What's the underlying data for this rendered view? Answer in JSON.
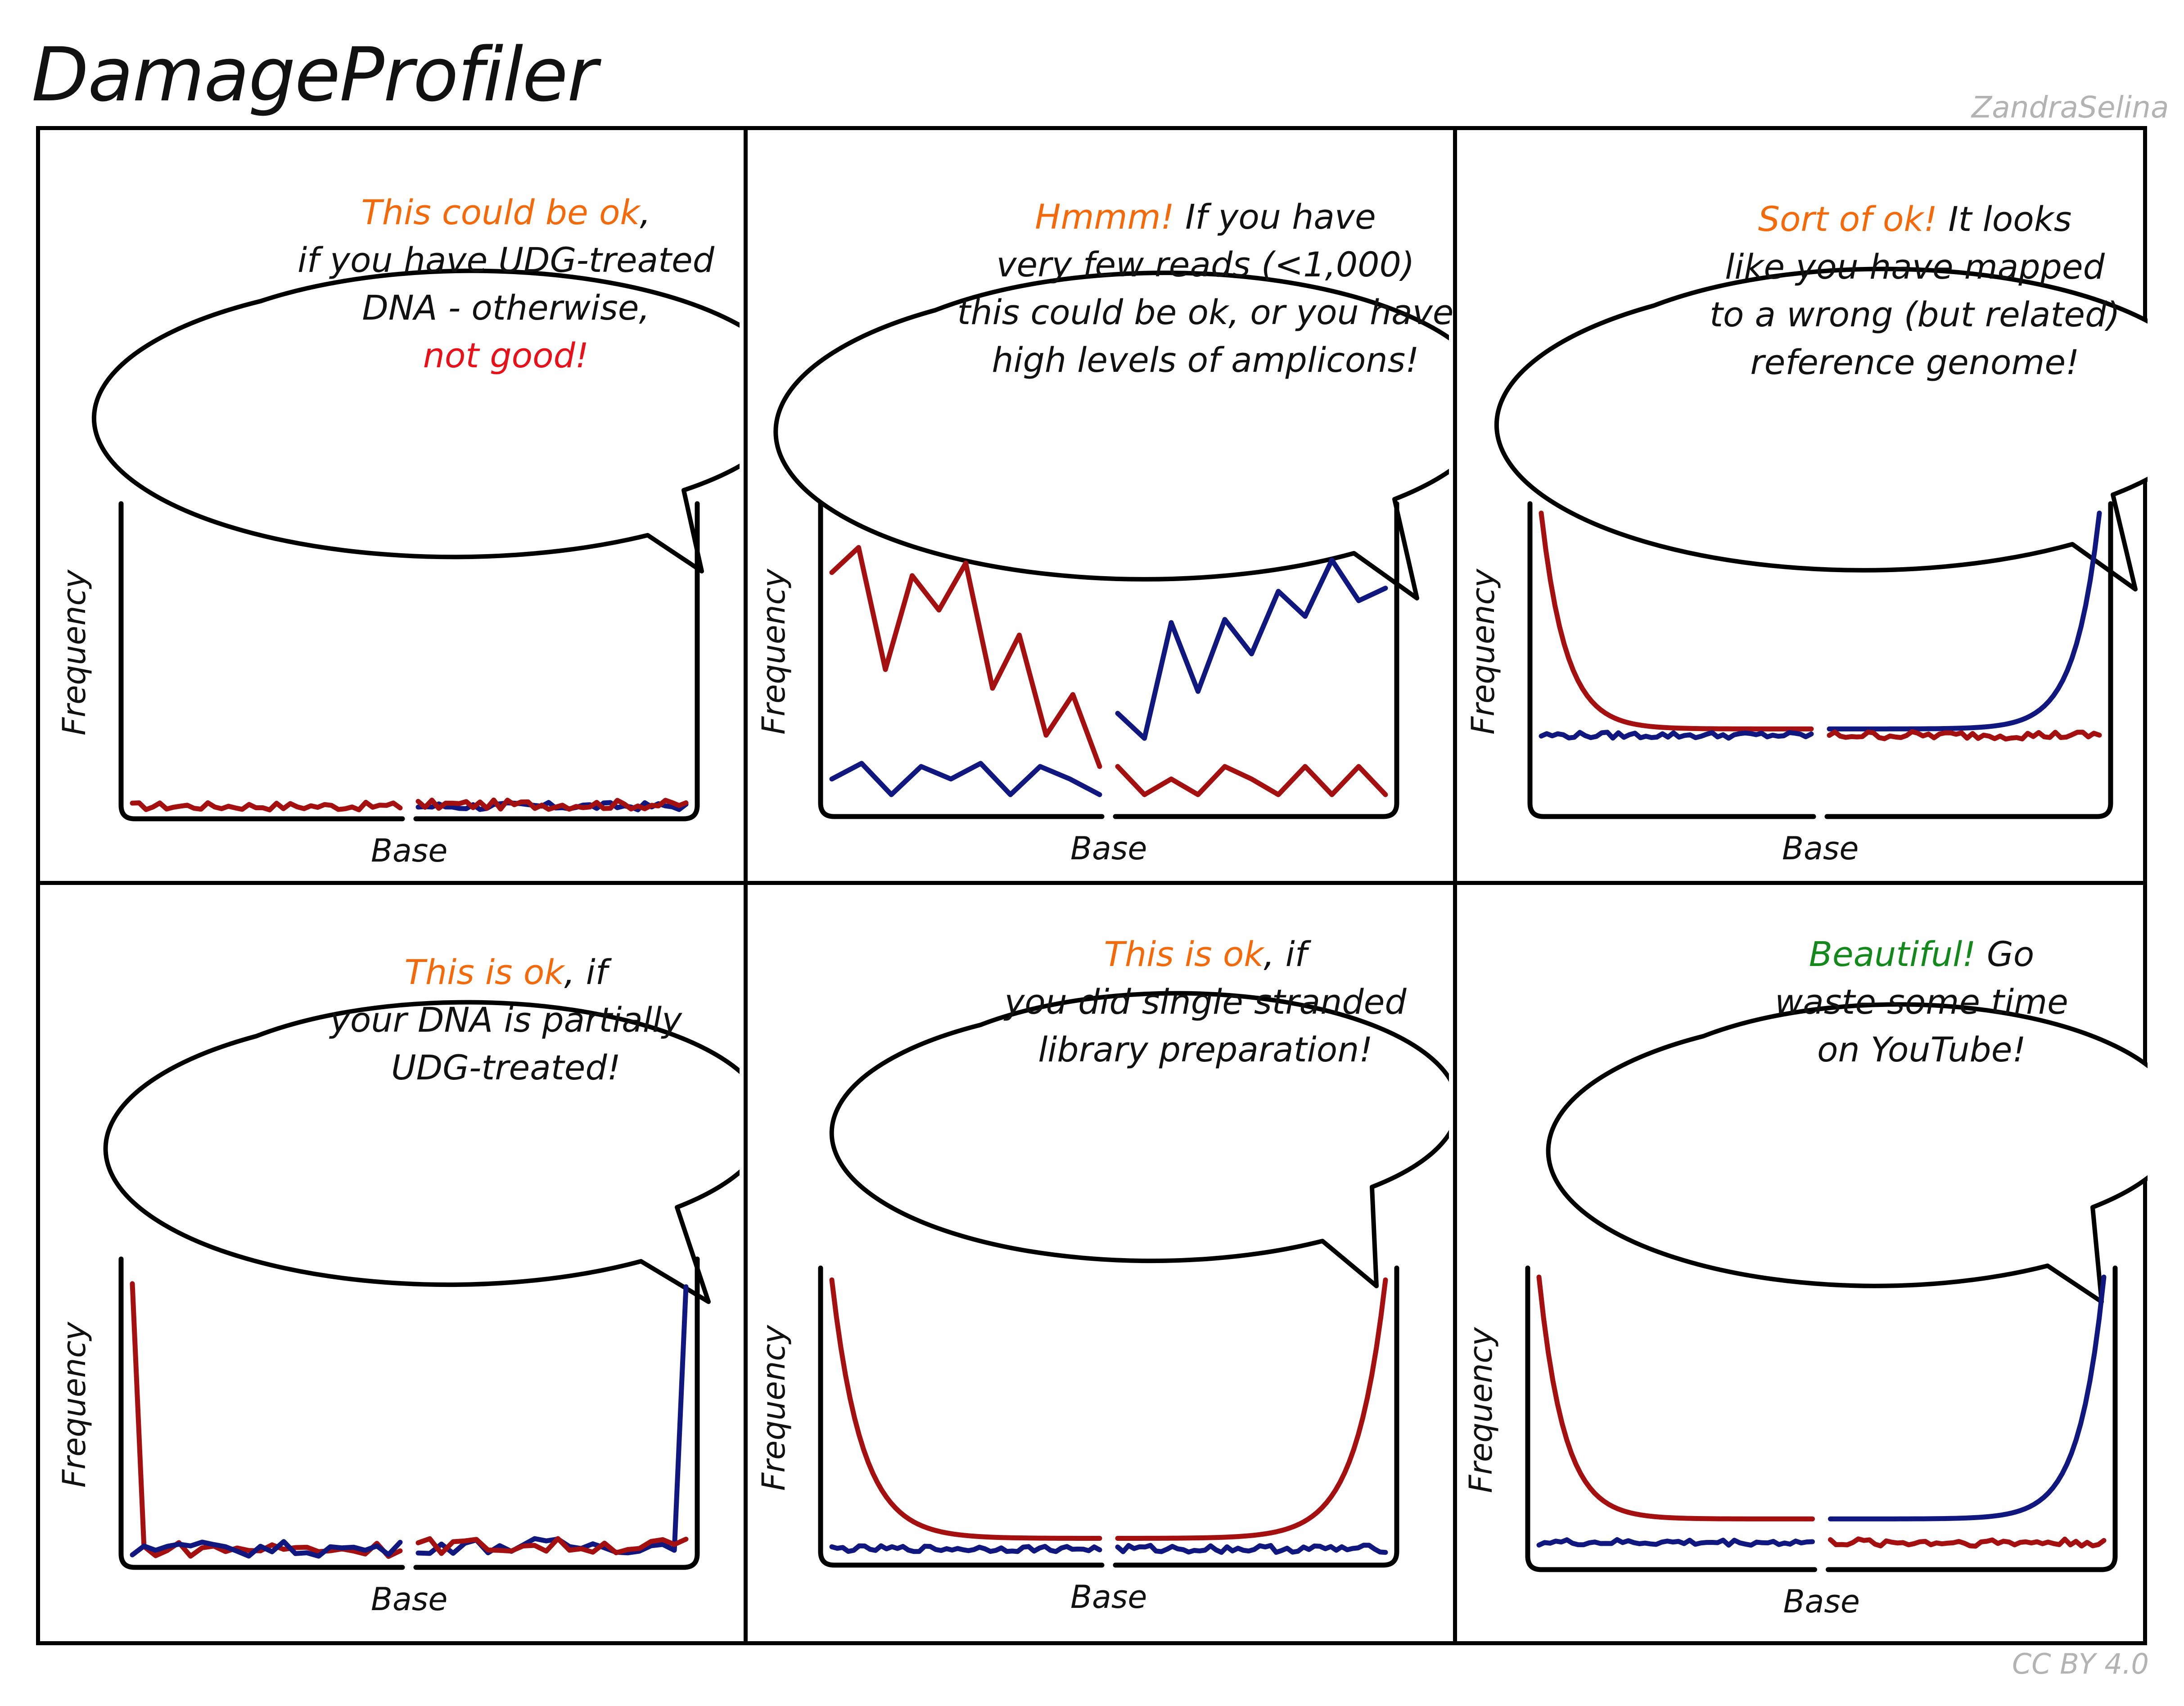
{
  "title": "DamageProfiler",
  "author": "ZandraSelina",
  "license": "CC BY 4.0",
  "colors": {
    "red": "#a40f10",
    "blue": "#101880",
    "orange": "#f46a0b",
    "alert_red": "#e8111a",
    "green": "#14891b"
  },
  "axis_labels": {
    "y": "Frequency",
    "x": "Base"
  },
  "panels": [
    {
      "lines": [
        [
          {
            "t": "This could be ok",
            "c": "orange"
          },
          {
            "t": ","
          }
        ],
        [
          {
            "t": "if you have UDG-treated"
          }
        ],
        [
          {
            "t": "DNA - otherwise,"
          }
        ],
        [
          {
            "t": "not good!",
            "c": "alert_red"
          }
        ]
      ]
    },
    {
      "lines": [
        [
          {
            "t": "Hmmm!",
            "c": "orange"
          },
          {
            "t": " If you have"
          }
        ],
        [
          {
            "t": "very few reads (<1,000)"
          }
        ],
        [
          {
            "t": "this could be ok, or you have"
          }
        ],
        [
          {
            "t": "high levels of amplicons!"
          }
        ]
      ]
    },
    {
      "lines": [
        [
          {
            "t": "Sort of ok!",
            "c": "orange"
          },
          {
            "t": " It looks"
          }
        ],
        [
          {
            "t": "like you have mapped"
          }
        ],
        [
          {
            "t": "to a wrong (but related)"
          }
        ],
        [
          {
            "t": "reference genome!"
          }
        ]
      ]
    },
    {
      "lines": [
        [
          {
            "t": "This is ok",
            "c": "orange"
          },
          {
            "t": ", if"
          }
        ],
        [
          {
            "t": "your DNA is partially"
          }
        ],
        [
          {
            "t": "UDG-treated!"
          }
        ]
      ]
    },
    {
      "lines": [
        [
          {
            "t": "This is ok",
            "c": "orange"
          },
          {
            "t": ", if"
          }
        ],
        [
          {
            "t": "you did single stranded"
          }
        ],
        [
          {
            "t": "library preparation!"
          }
        ]
      ]
    },
    {
      "lines": [
        [
          {
            "t": "Beautiful!",
            "c": "green"
          },
          {
            "t": " Go"
          }
        ],
        [
          {
            "t": "waste some time"
          }
        ],
        [
          {
            "t": "on YouTube!"
          }
        ]
      ]
    }
  ]
}
